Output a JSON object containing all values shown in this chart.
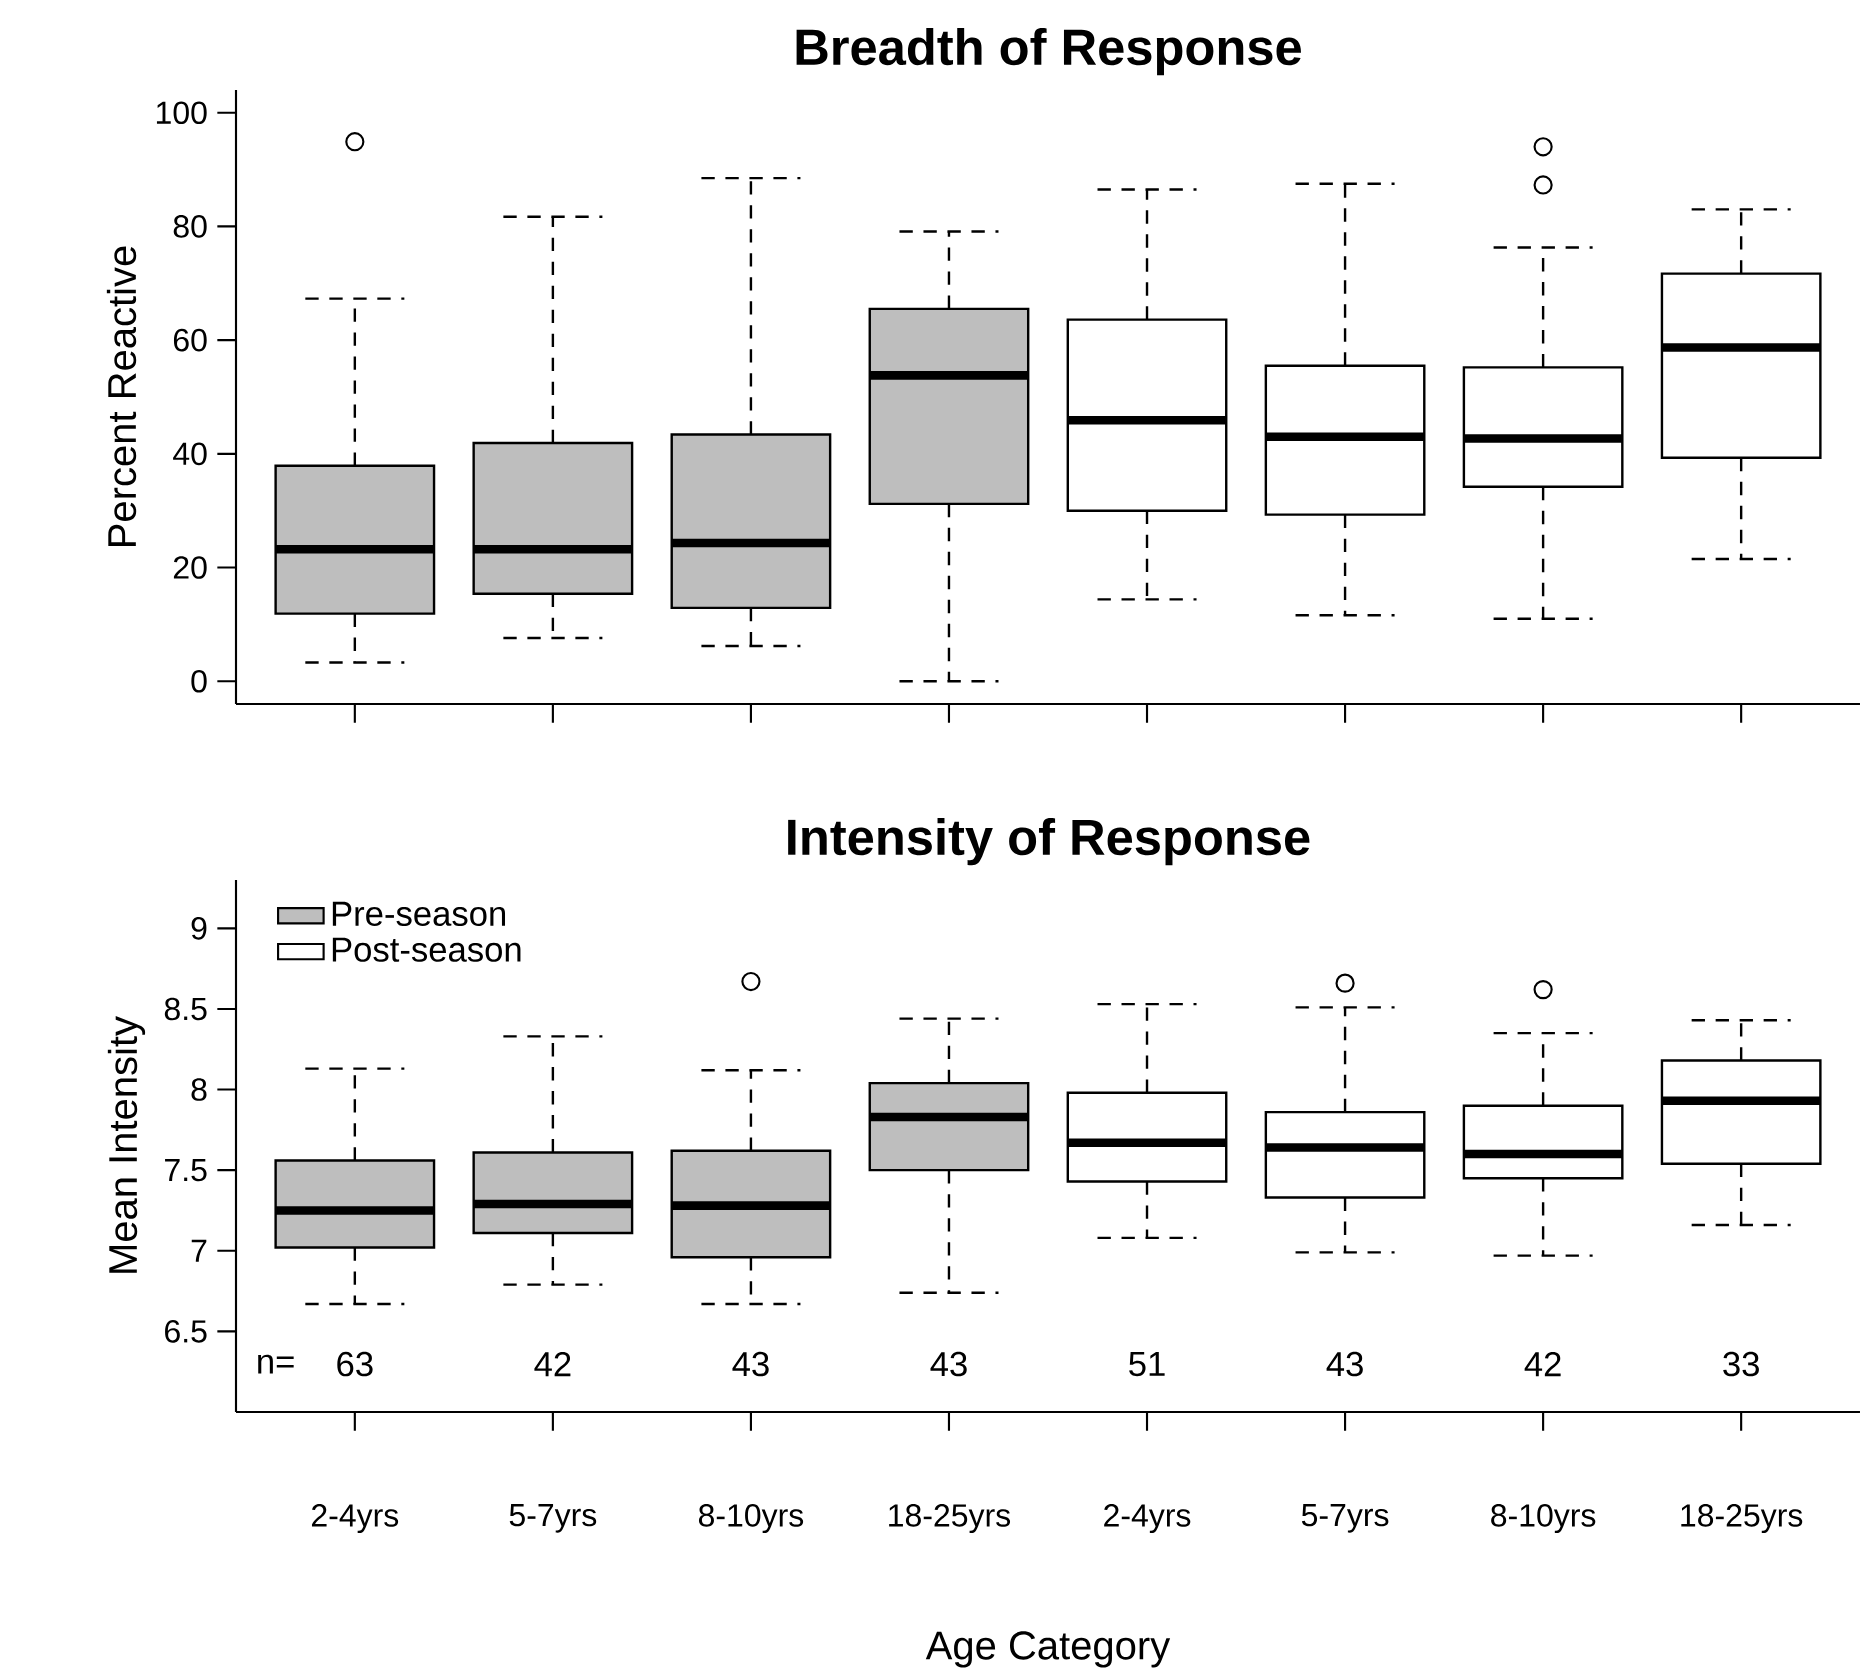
{
  "chart_data": [
    {
      "type": "box",
      "title": "Breadth of Response",
      "ylabel": "Percent Reactive",
      "categories": [
        null,
        null,
        null,
        null,
        null,
        null,
        null,
        null
      ],
      "ylim": [
        -4,
        104
      ],
      "yticks": [
        0,
        20,
        40,
        60,
        80,
        100
      ],
      "tick_labels": "y",
      "series": [
        {
          "color": "#bebebe",
          "boxes": [
            {
              "low": 3.3,
              "q1": 11.9,
              "median": 23.2,
              "q3": 37.9,
              "high": 67.3,
              "outliers": [
                94.9
              ]
            },
            {
              "low": 7.6,
              "q1": 15.4,
              "median": 23.2,
              "q3": 41.9,
              "high": 81.7
            },
            {
              "low": 6.2,
              "q1": 12.9,
              "median": 24.3,
              "q3": 43.4,
              "high": 88.5
            },
            {
              "low": 0,
              "q1": 31.2,
              "median": 53.8,
              "q3": 65.5,
              "high": 79.1
            },
            null,
            null,
            null,
            null
          ]
        },
        {
          "color": "#ffffff",
          "boxes": [
            null,
            null,
            null,
            null,
            {
              "low": 14.4,
              "q1": 30.0,
              "median": 45.9,
              "q3": 63.6,
              "high": 86.5
            },
            {
              "low": 11.6,
              "q1": 29.3,
              "median": 43.0,
              "q3": 55.5,
              "high": 87.5
            },
            {
              "low": 11.0,
              "q1": 34.2,
              "median": 42.7,
              "q3": 55.2,
              "high": 76.3,
              "outliers": [
                87.3,
                94.0
              ]
            },
            {
              "low": 21.5,
              "q1": 39.3,
              "median": 58.7,
              "q3": 71.7,
              "high": 83.0
            }
          ]
        }
      ]
    },
    {
      "type": "box",
      "title": "Intensity of Response",
      "ylabel": "Mean Intensity",
      "xlabel": "Age Category",
      "categories": [
        "2-4yrs",
        "5-7yrs",
        "8-10yrs",
        "18-25yrs",
        "2-4yrs",
        "5-7yrs",
        "8-10yrs",
        "18-25yrs"
      ],
      "ylim": [
        6.0,
        9.3
      ],
      "yticks": [
        6.5,
        7,
        7.5,
        8,
        8.5,
        9
      ],
      "legend": "top left",
      "annotations": [
        "n=",
        "63",
        "42",
        "43",
        "43",
        "51",
        "43",
        "42",
        "33"
      ],
      "series": [
        {
          "name": "Pre-season",
          "color": "#bebebe",
          "boxes": [
            {
              "low": 6.67,
              "q1": 7.02,
              "median": 7.25,
              "q3": 7.56,
              "high": 8.13
            },
            {
              "low": 6.79,
              "q1": 7.11,
              "median": 7.29,
              "q3": 7.61,
              "high": 8.33
            },
            {
              "low": 6.67,
              "q1": 6.96,
              "median": 7.28,
              "q3": 7.62,
              "high": 8.12,
              "outliers": [
                8.67
              ]
            },
            {
              "low": 6.74,
              "q1": 7.5,
              "median": 7.83,
              "q3": 8.04,
              "high": 8.44
            },
            null,
            null,
            null,
            null
          ]
        },
        {
          "name": "Post-season",
          "color": "#ffffff",
          "boxes": [
            null,
            null,
            null,
            null,
            {
              "low": 7.08,
              "q1": 7.43,
              "median": 7.67,
              "q3": 7.98,
              "high": 8.53
            },
            {
              "low": 6.99,
              "q1": 7.33,
              "median": 7.64,
              "q3": 7.86,
              "high": 8.51,
              "outliers": [
                8.66
              ]
            },
            {
              "low": 6.97,
              "q1": 7.45,
              "median": 7.6,
              "q3": 7.9,
              "high": 8.35,
              "outliers": [
                8.62
              ]
            },
            {
              "low": 7.16,
              "q1": 7.54,
              "median": 7.93,
              "q3": 8.18,
              "high": 8.43
            }
          ]
        }
      ]
    }
  ]
}
